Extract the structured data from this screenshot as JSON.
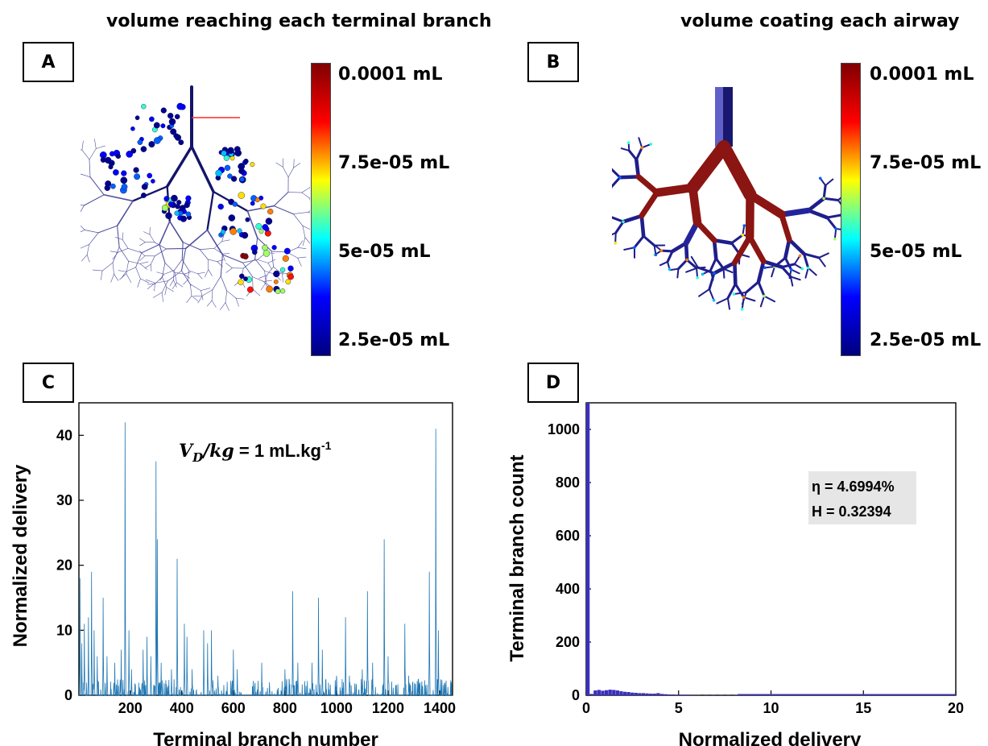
{
  "titles": {
    "left": "volume reaching each terminal branch",
    "right": "volume coating each airway"
  },
  "panel_labels": {
    "a": "A",
    "b": "B",
    "c": "C",
    "d": "D"
  },
  "colorbar": {
    "colormap": "jet",
    "colors": [
      "#00007f",
      "#0000ff",
      "#00ffff",
      "#ffff00",
      "#ff0000",
      "#7f0000"
    ],
    "tick_labels": [
      "0.0001 mL",
      "7.5e-05 mL",
      "5e-05 mL",
      "2.5e-05 mL"
    ]
  },
  "annotations": {
    "c_formula_main": "V",
    "c_formula_sub": "D",
    "c_formula_rest": "/kg",
    "c_formula_value": " = 1 mL.kg",
    "c_formula_sup": "-1",
    "d_eta": "η = 4.6994%",
    "d_H": "H = 0.32394"
  },
  "chart_data": [
    {
      "panel": "C",
      "type": "line",
      "xlabel": "Terminal branch number",
      "ylabel": "Normalized delivery",
      "xlim": [
        1,
        1450
      ],
      "ylim": [
        0,
        45
      ],
      "xticks": [
        200,
        400,
        600,
        800,
        1000,
        1200,
        1400
      ],
      "yticks": [
        0,
        10,
        20,
        30,
        40
      ],
      "grid": false,
      "color": "#1f77b4",
      "peaks": [
        [
          5,
          18
        ],
        [
          12,
          8
        ],
        [
          22,
          11
        ],
        [
          38,
          12
        ],
        [
          50,
          19
        ],
        [
          60,
          10
        ],
        [
          72,
          6
        ],
        [
          95,
          15
        ],
        [
          110,
          6
        ],
        [
          140,
          5
        ],
        [
          165,
          7
        ],
        [
          180,
          42
        ],
        [
          195,
          10
        ],
        [
          205,
          4
        ],
        [
          250,
          7
        ],
        [
          265,
          9
        ],
        [
          280,
          6
        ],
        [
          300,
          36
        ],
        [
          305,
          24
        ],
        [
          320,
          5
        ],
        [
          360,
          4
        ],
        [
          382,
          21
        ],
        [
          410,
          11
        ],
        [
          420,
          9
        ],
        [
          440,
          4
        ],
        [
          485,
          10
        ],
        [
          500,
          8
        ],
        [
          515,
          10
        ],
        [
          540,
          3
        ],
        [
          600,
          7
        ],
        [
          615,
          4
        ],
        [
          710,
          5
        ],
        [
          740,
          2
        ],
        [
          800,
          4
        ],
        [
          830,
          16
        ],
        [
          850,
          5
        ],
        [
          905,
          5
        ],
        [
          930,
          15
        ],
        [
          945,
          7
        ],
        [
          1000,
          3
        ],
        [
          1035,
          12
        ],
        [
          1050,
          3
        ],
        [
          1100,
          4
        ],
        [
          1120,
          16
        ],
        [
          1140,
          5
        ],
        [
          1185,
          24
        ],
        [
          1200,
          6
        ],
        [
          1265,
          11
        ],
        [
          1280,
          3
        ],
        [
          1360,
          19
        ],
        [
          1385,
          41
        ],
        [
          1395,
          10
        ]
      ]
    },
    {
      "panel": "D",
      "type": "bar",
      "xlabel": "Normalized delivery",
      "ylabel": "Terminal branch count",
      "xlim": [
        0,
        20
      ],
      "ylim": [
        0,
        1100
      ],
      "xticks": [
        0,
        5,
        10,
        15,
        20
      ],
      "yticks": [
        0,
        200,
        400,
        600,
        800,
        1000
      ],
      "grid": false,
      "color": "#3b2fbf",
      "bin_width": 0.2,
      "bins": [
        [
          0.0,
          1100
        ],
        [
          0.2,
          5
        ],
        [
          0.4,
          18
        ],
        [
          0.6,
          20
        ],
        [
          0.8,
          17
        ],
        [
          1.0,
          19
        ],
        [
          1.2,
          21
        ],
        [
          1.4,
          20
        ],
        [
          1.6,
          18
        ],
        [
          1.8,
          15
        ],
        [
          2.0,
          13
        ],
        [
          2.2,
          12
        ],
        [
          2.4,
          10
        ],
        [
          2.6,
          9
        ],
        [
          2.8,
          8
        ],
        [
          3.0,
          8
        ],
        [
          3.2,
          7
        ],
        [
          3.4,
          6
        ],
        [
          3.6,
          6
        ],
        [
          3.8,
          8
        ],
        [
          4.0,
          5
        ],
        [
          4.2,
          4
        ],
        [
          4.4,
          3
        ],
        [
          4.6,
          3
        ],
        [
          4.8,
          2
        ],
        [
          5.0,
          2
        ],
        [
          5.2,
          2
        ],
        [
          5.4,
          2
        ],
        [
          5.6,
          1
        ],
        [
          5.8,
          1
        ],
        [
          6.0,
          1
        ],
        [
          6.4,
          1
        ],
        [
          6.8,
          1
        ],
        [
          7.2,
          1
        ],
        [
          7.6,
          1
        ],
        [
          8.0,
          1
        ]
      ]
    }
  ]
}
